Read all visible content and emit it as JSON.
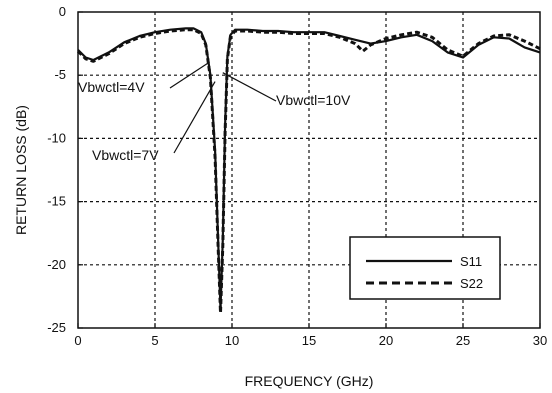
{
  "chart_data": {
    "type": "line",
    "title": "",
    "xlabel": "FREQUENCY (GHz)",
    "ylabel": "RETURN LOSS (dB)",
    "xlim": [
      0,
      30
    ],
    "ylim": [
      -25,
      0
    ],
    "xticks": [
      0,
      5,
      10,
      15,
      20,
      25,
      30
    ],
    "yticks": [
      0,
      -5,
      -10,
      -15,
      -20,
      -25
    ],
    "grid": true,
    "grid_style": "dashed",
    "legend": {
      "placement": "lower-right",
      "entries": [
        {
          "name": "S11",
          "style": "solid"
        },
        {
          "name": "S22",
          "style": "dashed"
        }
      ]
    },
    "annotations": [
      {
        "text": "Vbwctl=4V",
        "points_to": [
          8.5,
          -4.0
        ]
      },
      {
        "text": "Vbwctl=7V",
        "points_to": [
          8.9,
          -5.5
        ]
      },
      {
        "text": "Vbwctl=10V",
        "points_to": [
          9.4,
          -4.8
        ]
      }
    ],
    "series": [
      {
        "name": "S11",
        "style": "solid",
        "color": "#111111",
        "x": [
          0,
          0.5,
          1,
          2,
          3,
          4,
          5,
          6,
          7,
          7.5,
          8,
          8.3,
          8.6,
          8.9,
          9.1,
          9.25,
          9.4,
          9.55,
          9.7,
          9.9,
          10.2,
          11,
          12,
          13,
          14,
          15,
          16,
          17,
          18,
          19,
          20,
          21,
          22,
          23,
          24,
          25,
          26,
          27,
          28,
          29,
          30
        ],
        "y": [
          -3.0,
          -3.6,
          -3.8,
          -3.2,
          -2.4,
          -1.9,
          -1.6,
          -1.4,
          -1.3,
          -1.3,
          -1.6,
          -2.5,
          -5,
          -11,
          -18,
          -23.5,
          -18,
          -9,
          -3.5,
          -1.8,
          -1.4,
          -1.4,
          -1.5,
          -1.5,
          -1.6,
          -1.6,
          -1.6,
          -1.9,
          -2.2,
          -2.5,
          -2.3,
          -2.0,
          -1.8,
          -2.3,
          -3.2,
          -3.6,
          -2.6,
          -2.0,
          -2.1,
          -2.8,
          -3.2
        ]
      },
      {
        "name": "S22",
        "style": "dashed",
        "color": "#111111",
        "x": [
          0,
          0.5,
          1,
          2,
          3,
          4,
          5,
          6,
          7,
          7.5,
          8,
          8.3,
          8.6,
          8.9,
          9.1,
          9.25,
          9.4,
          9.55,
          9.7,
          9.9,
          10.2,
          11,
          12,
          13,
          14,
          15,
          16,
          17,
          18,
          18.5,
          19,
          20,
          21,
          22,
          23,
          24,
          25,
          26,
          27,
          28,
          29,
          30
        ],
        "y": [
          -3.1,
          -3.7,
          -3.9,
          -3.3,
          -2.5,
          -2.0,
          -1.7,
          -1.5,
          -1.4,
          -1.4,
          -1.7,
          -2.6,
          -5.2,
          -11.5,
          -18.5,
          -23.8,
          -18.5,
          -9.5,
          -3.7,
          -1.9,
          -1.5,
          -1.5,
          -1.6,
          -1.6,
          -1.7,
          -1.7,
          -1.7,
          -2.0,
          -2.5,
          -3.1,
          -2.6,
          -2.1,
          -1.8,
          -1.6,
          -2.0,
          -3.0,
          -3.5,
          -2.5,
          -1.9,
          -1.8,
          -2.3,
          -2.9
        ]
      }
    ]
  }
}
